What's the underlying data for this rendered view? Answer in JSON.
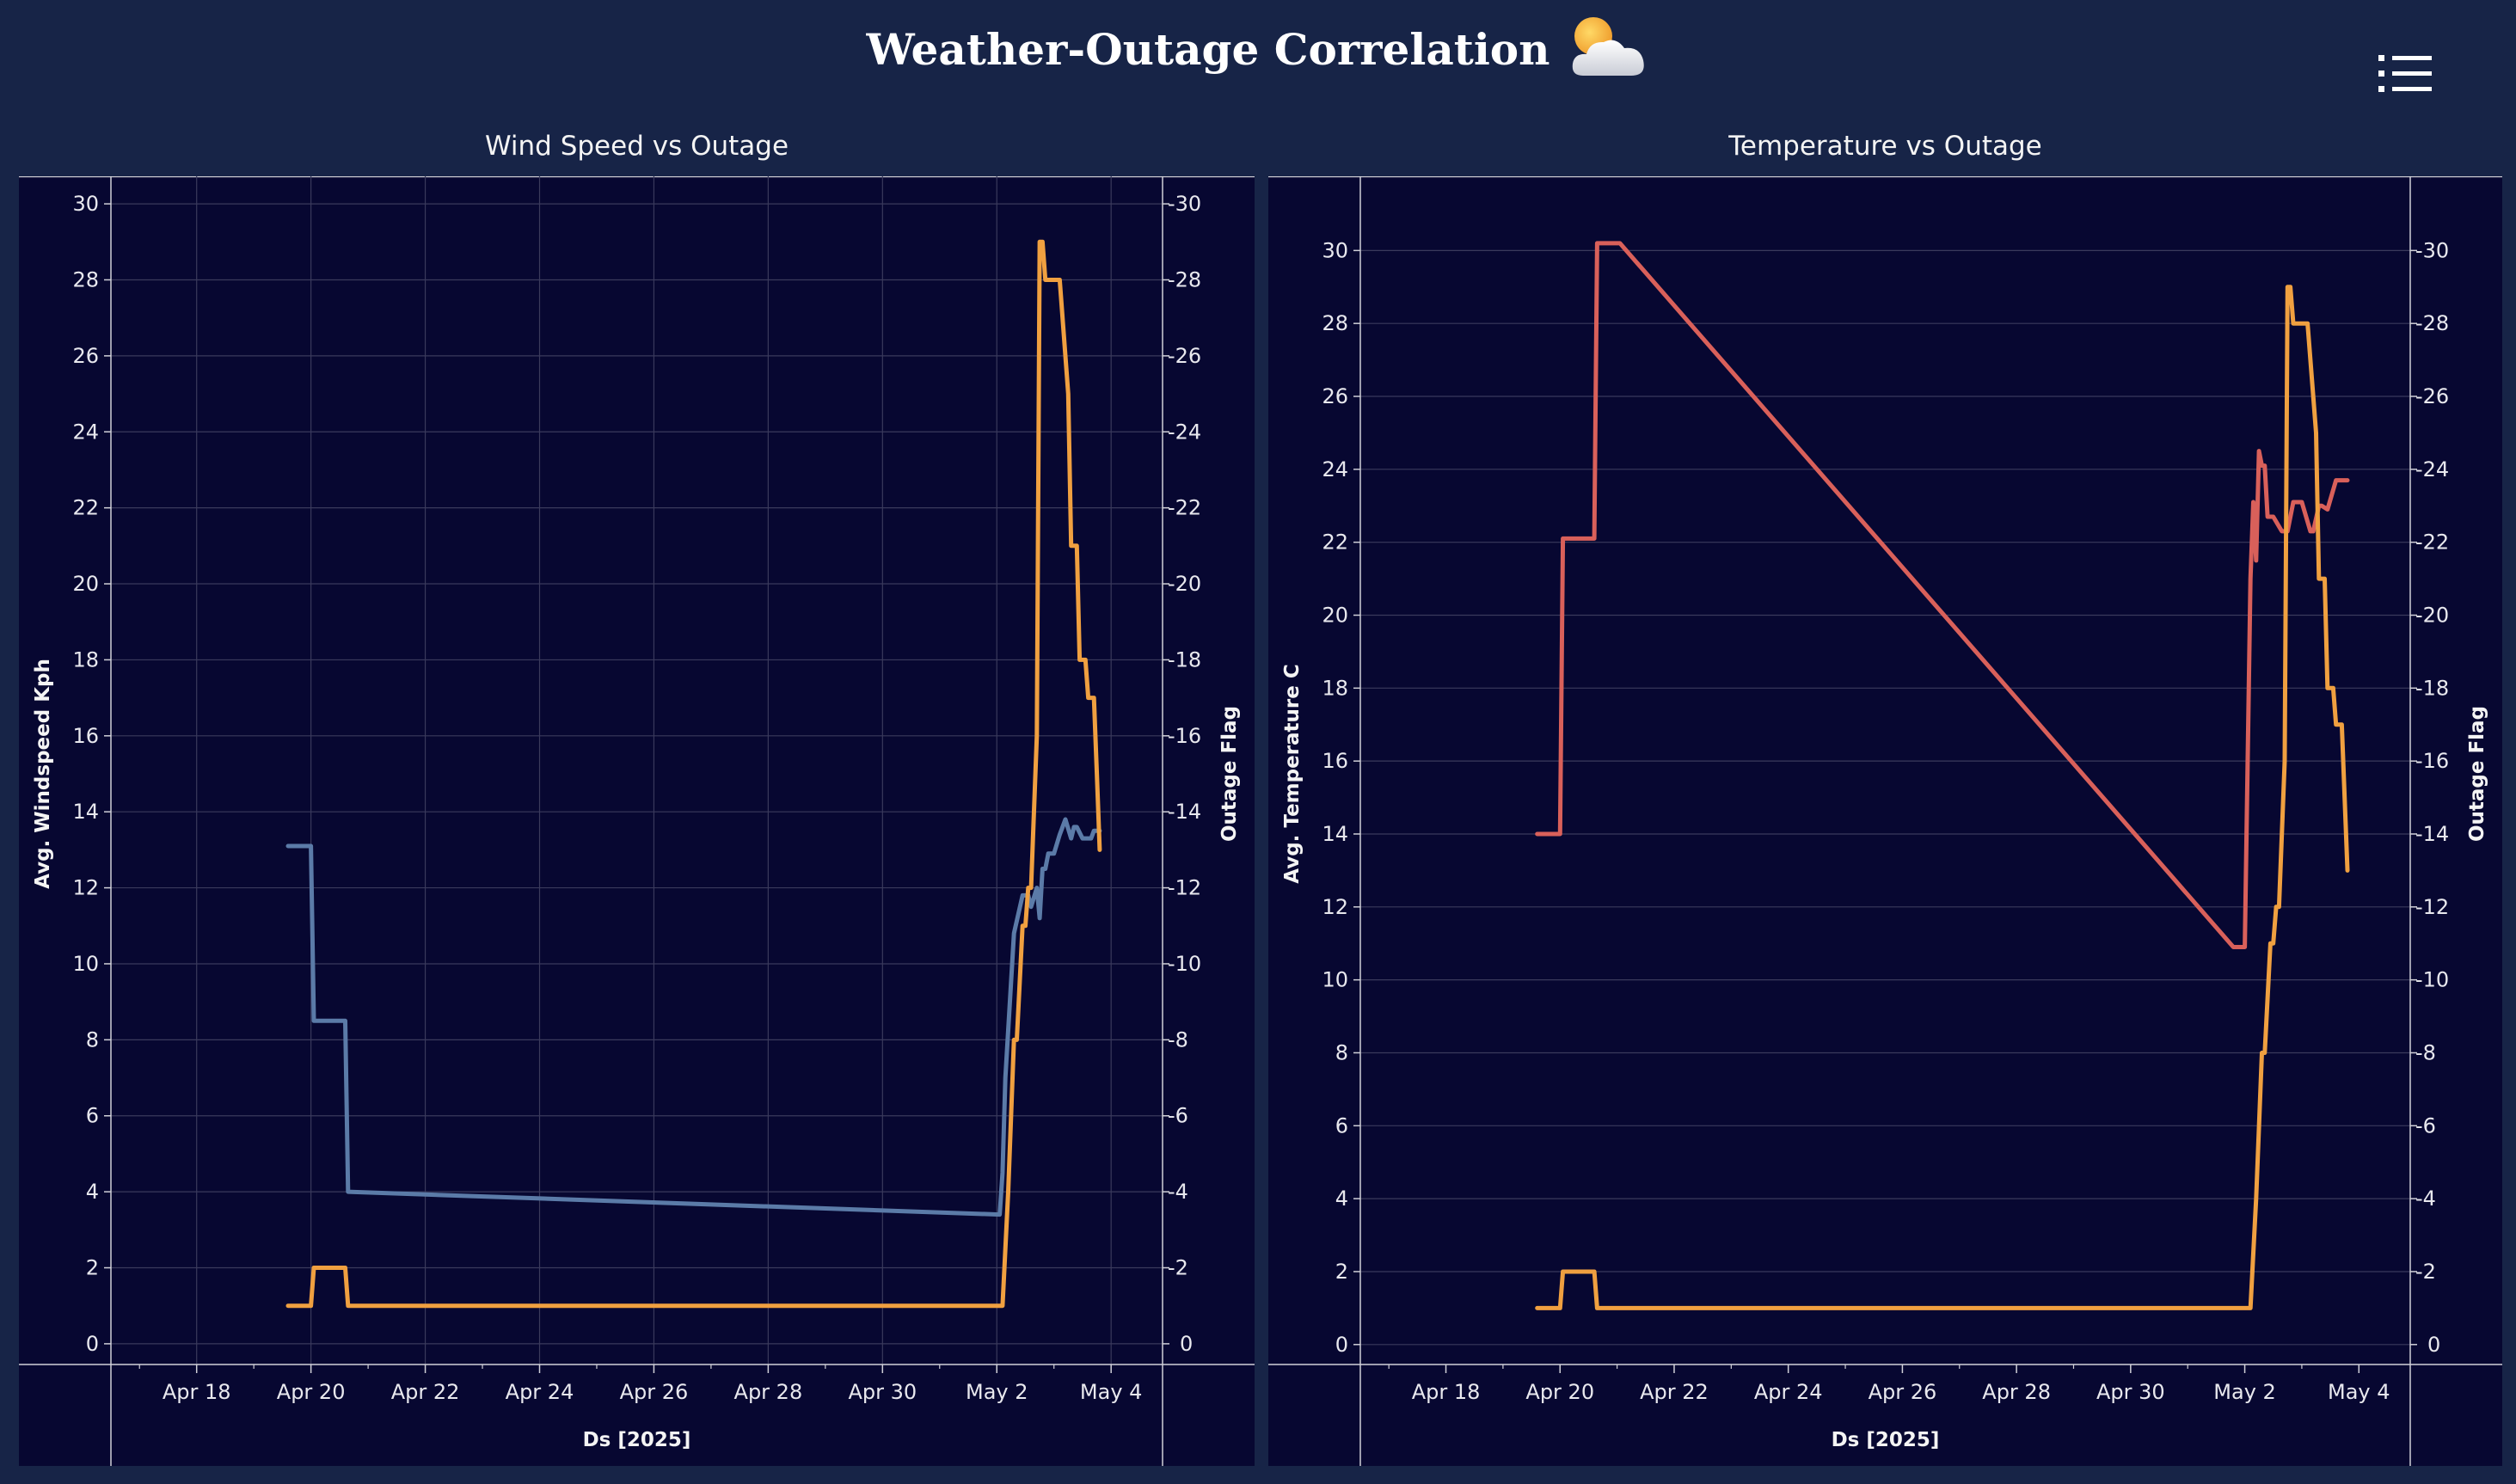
{
  "header": {
    "title": "Weather-Outage Correlation",
    "emoji": "sun-behind-cloud-icon",
    "menu_icon": "list-icon"
  },
  "colors": {
    "page_bg": "#172447",
    "plot_bg": "#070731",
    "grid": "#3a3a5c",
    "outage_line": "#f0a040",
    "wind_line": "#5b7ba8",
    "temp_line": "#d9605a"
  },
  "chart_data": [
    {
      "type": "line",
      "title": "Wind Speed vs Outage",
      "xlabel": "Ds [2025]",
      "ylabel": "Avg. Windspeed Kph",
      "ylabel_right": "Outage Flag",
      "x_ticks": [
        "Apr 18",
        "Apr 20",
        "Apr 22",
        "Apr 24",
        "Apr 26",
        "Apr 28",
        "Apr 30",
        "May 2",
        "May 4"
      ],
      "x_ticks_days": [
        -13,
        -11,
        -9,
        -7,
        -5,
        -3,
        -1,
        1,
        3
      ],
      "xlim_days": [
        -14.5,
        3.9
      ],
      "ylim_left": [
        -0.5,
        30.5
      ],
      "ylim_right": [
        -0.5,
        30.5
      ],
      "y_ticks_left": [
        0,
        2,
        4,
        6,
        8,
        10,
        12,
        14,
        16,
        18,
        20,
        22,
        24,
        26,
        28,
        30
      ],
      "y_ticks_right": [
        0,
        2,
        4,
        6,
        8,
        10,
        12,
        14,
        16,
        18,
        20,
        22,
        24,
        26,
        28,
        30
      ],
      "grid": true,
      "series": [
        {
          "axis": "left",
          "color": "#5b7ba8",
          "x": [
            -11.4,
            -11.0,
            -10.95,
            -10.4,
            -10.35,
            1.05,
            1.1,
            1.15,
            1.3,
            1.45,
            1.55,
            1.6,
            1.7,
            1.75,
            1.8,
            1.85,
            1.9,
            2.0,
            2.1,
            2.2,
            2.3,
            2.35,
            2.4,
            2.5,
            2.55,
            2.65,
            2.7,
            2.8
          ],
          "y": [
            13.1,
            13.1,
            8.5,
            8.5,
            4.0,
            3.4,
            4.5,
            7.0,
            10.8,
            11.8,
            11.8,
            11.5,
            12.0,
            11.2,
            12.5,
            12.5,
            12.9,
            12.9,
            13.4,
            13.8,
            13.3,
            13.6,
            13.6,
            13.3,
            13.3,
            13.3,
            13.5,
            13.5
          ]
        },
        {
          "axis": "right",
          "color": "#f0a040",
          "x": [
            -11.4,
            -11.0,
            -10.95,
            -10.4,
            -10.35,
            1.1,
            1.2,
            1.3,
            1.35,
            1.45,
            1.5,
            1.55,
            1.6,
            1.7,
            1.75,
            1.8,
            1.85,
            1.9,
            2.1,
            2.25,
            2.3,
            2.4,
            2.45,
            2.55,
            2.6,
            2.7,
            2.75,
            2.8
          ],
          "y": [
            1,
            1,
            2,
            2,
            1,
            1,
            4,
            8,
            8,
            11,
            11,
            12,
            12,
            16,
            29,
            29,
            28,
            28,
            28,
            25,
            21,
            21,
            18,
            18,
            17,
            17,
            15,
            13
          ]
        }
      ]
    },
    {
      "type": "line",
      "title": "Temperature vs Outage",
      "xlabel": "Ds [2025]",
      "ylabel": "Avg. Temperature C",
      "ylabel_right": "Outage Flag",
      "x_ticks": [
        "Apr 18",
        "Apr 20",
        "Apr 22",
        "Apr 24",
        "Apr 26",
        "Apr 28",
        "Apr 30",
        "May 2",
        "May 4"
      ],
      "x_ticks_days": [
        -13,
        -11,
        -9,
        -7,
        -5,
        -3,
        -1,
        1,
        3
      ],
      "xlim_days": [
        -14.5,
        3.9
      ],
      "ylim_left": [
        -0.5,
        31.8
      ],
      "ylim_right": [
        -0.5,
        31.8
      ],
      "y_ticks_left": [
        0,
        2,
        4,
        6,
        8,
        10,
        12,
        14,
        16,
        18,
        20,
        22,
        24,
        26,
        28,
        30
      ],
      "y_ticks_right": [
        0,
        2,
        4,
        6,
        8,
        10,
        12,
        14,
        16,
        18,
        20,
        22,
        24,
        26,
        28,
        30
      ],
      "grid": true,
      "series": [
        {
          "axis": "left",
          "color": "#d9605a",
          "x": [
            -11.4,
            -11.0,
            -10.95,
            -10.4,
            -10.35,
            -9.95,
            0.8,
            1.0,
            1.1,
            1.15,
            1.2,
            1.25,
            1.3,
            1.35,
            1.4,
            1.5,
            1.65,
            1.75,
            1.85,
            2.0,
            2.15,
            2.2,
            2.3,
            2.35,
            2.45,
            2.6,
            2.8
          ],
          "y": [
            14.0,
            14.0,
            22.1,
            22.1,
            30.2,
            30.2,
            10.9,
            10.9,
            21.0,
            23.1,
            21.5,
            24.5,
            24.1,
            24.1,
            22.7,
            22.7,
            22.3,
            22.3,
            23.1,
            23.1,
            22.3,
            22.3,
            23.0,
            23.0,
            22.9,
            23.7,
            23.7
          ]
        },
        {
          "axis": "right",
          "color": "#f0a040",
          "x": [
            -11.4,
            -11.0,
            -10.95,
            -10.4,
            -10.35,
            1.1,
            1.2,
            1.3,
            1.35,
            1.45,
            1.5,
            1.55,
            1.6,
            1.7,
            1.75,
            1.8,
            1.85,
            1.9,
            2.1,
            2.25,
            2.3,
            2.4,
            2.45,
            2.55,
            2.6,
            2.7,
            2.75,
            2.8
          ],
          "y": [
            1,
            1,
            2,
            2,
            1,
            1,
            4,
            8,
            8,
            11,
            11,
            12,
            12,
            16,
            29,
            29,
            28,
            28,
            28,
            25,
            21,
            21,
            18,
            18,
            17,
            17,
            15,
            13
          ]
        }
      ]
    }
  ]
}
